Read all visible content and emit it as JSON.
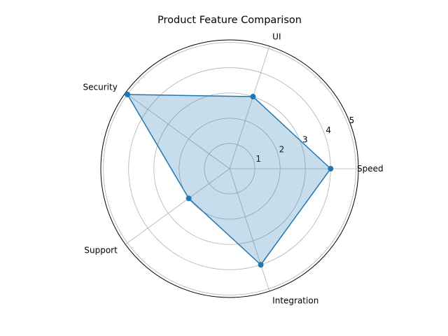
{
  "chart_data": {
    "type": "radar",
    "title": "Product Feature Comparison",
    "categories": [
      "Speed",
      "UI",
      "Security",
      "Support",
      "Integration"
    ],
    "series": [
      {
        "values": [
          4,
          3,
          5,
          2,
          4
        ]
      }
    ],
    "rticks": [
      "1",
      "2",
      "3",
      "4",
      "5"
    ],
    "rlim": [
      0,
      5.1
    ],
    "grid": true,
    "colors": {
      "line": "#1f77b4",
      "fill": "#1f77b4",
      "grid": "#b0b0b0",
      "frame": "#000000"
    }
  }
}
